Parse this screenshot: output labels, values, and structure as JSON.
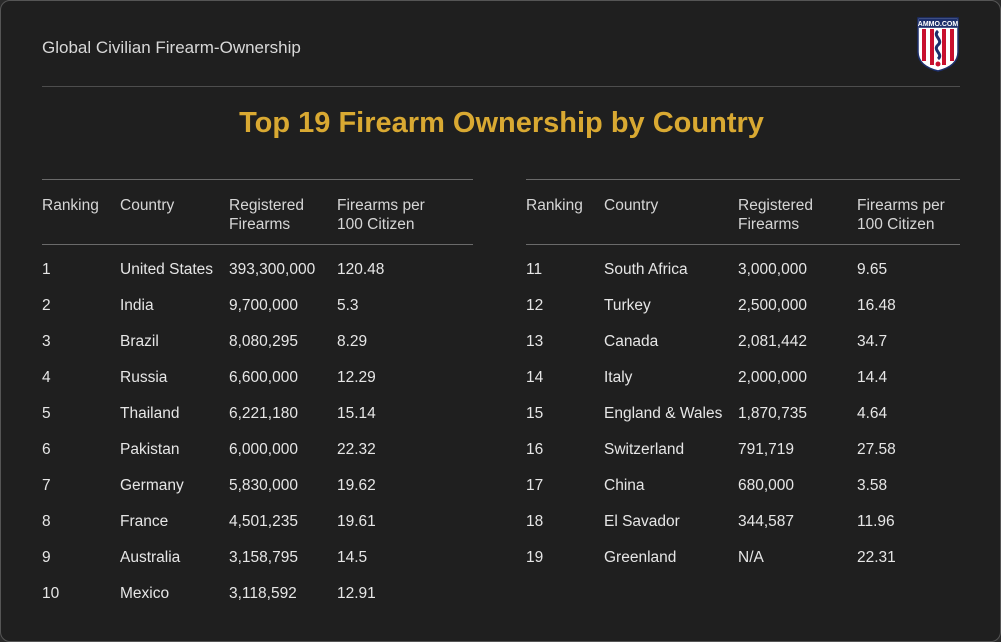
{
  "header": {
    "title": "Global Civilian Firearm-Ownership",
    "logo_text": "AMMO.COM"
  },
  "main_title": "Top 19 Firearm Ownership by Country",
  "columns": {
    "ranking": "Ranking",
    "country": "Country",
    "registered": "Registered Firearms",
    "per100": "Firearms per 100 Citizen"
  },
  "left_rows": [
    {
      "rank": "1",
      "country": "United States",
      "registered": "393,300,000",
      "per100": "120.48"
    },
    {
      "rank": "2",
      "country": "India",
      "registered": "9,700,000",
      "per100": "5.3"
    },
    {
      "rank": "3",
      "country": "Brazil",
      "registered": "8,080,295",
      "per100": "8.29"
    },
    {
      "rank": "4",
      "country": "Russia",
      "registered": "6,600,000",
      "per100": "12.29"
    },
    {
      "rank": "5",
      "country": "Thailand",
      "registered": "6,221,180",
      "per100": "15.14"
    },
    {
      "rank": "6",
      "country": "Pakistan",
      "registered": "6,000,000",
      "per100": "22.32"
    },
    {
      "rank": "7",
      "country": "Germany",
      "registered": "5,830,000",
      "per100": "19.62"
    },
    {
      "rank": "8",
      "country": "France",
      "registered": "4,501,235",
      "per100": "19.61"
    },
    {
      "rank": "9",
      "country": "Australia",
      "registered": "3,158,795",
      "per100": "14.5"
    },
    {
      "rank": "10",
      "country": "Mexico",
      "registered": "3,118,592",
      "per100": "12.91"
    }
  ],
  "right_rows": [
    {
      "rank": "11",
      "country": "South Africa",
      "registered": "3,000,000",
      "per100": "9.65"
    },
    {
      "rank": "12",
      "country": "Turkey",
      "registered": "2,500,000",
      "per100": "16.48"
    },
    {
      "rank": "13",
      "country": "Canada",
      "registered": "2,081,442",
      "per100": "34.7"
    },
    {
      "rank": "14",
      "country": "Italy",
      "registered": "2,000,000",
      "per100": "14.4"
    },
    {
      "rank": "15",
      "country": "England & Wales",
      "registered": "1,870,735",
      "per100": "4.64"
    },
    {
      "rank": "16",
      "country": "Switzerland",
      "registered": "791,719",
      "per100": "27.58"
    },
    {
      "rank": "17",
      "country": "China",
      "registered": "680,000",
      "per100": "3.58"
    },
    {
      "rank": "18",
      "country": "El Savador",
      "registered": "344,587",
      "per100": "11.96"
    },
    {
      "rank": "19",
      "country": "Greenland",
      "registered": "N/A",
      "per100": "22.31"
    }
  ],
  "colors": {
    "title_gold": "#d9a932",
    "background": "#1f1f1f",
    "logo_red": "#c8102e",
    "logo_navy": "#1d2f6b"
  }
}
